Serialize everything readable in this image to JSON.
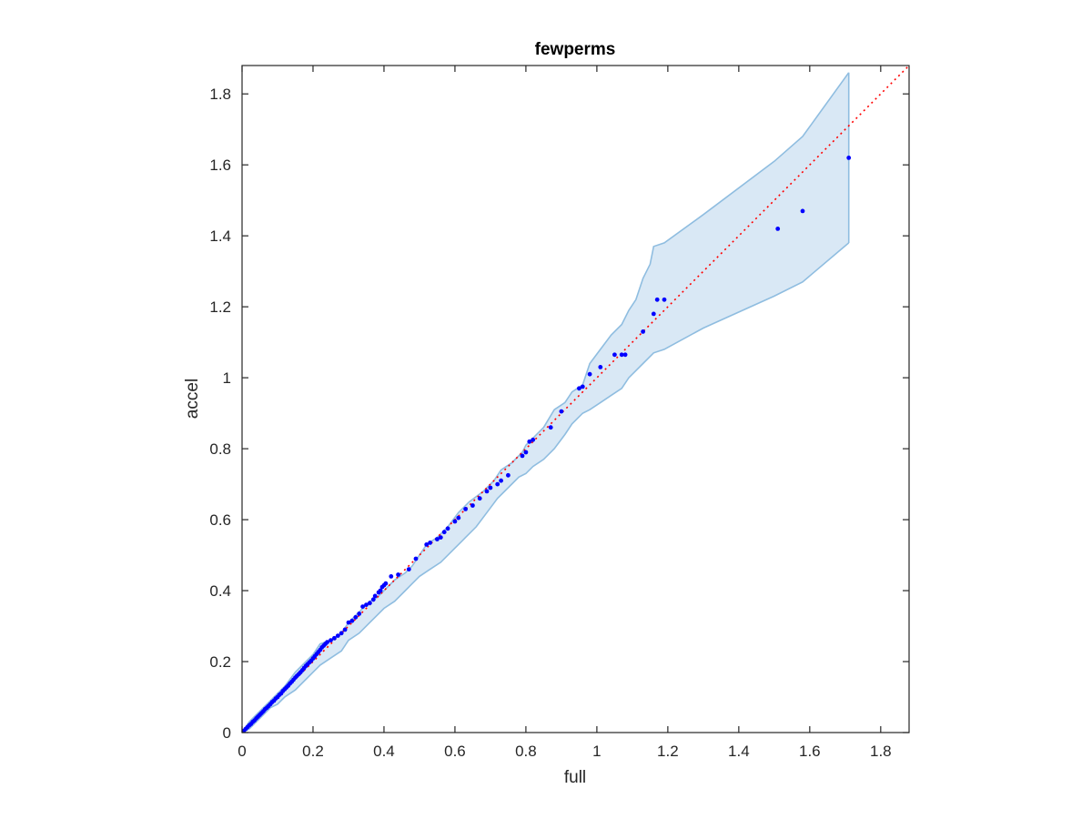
{
  "chart_data": {
    "type": "scatter",
    "title": "fewperms",
    "xlabel": "full",
    "ylabel": "accel",
    "xlim": [
      0,
      1.88
    ],
    "ylim": [
      0,
      1.88
    ],
    "xticks": [
      0,
      0.2,
      0.4,
      0.6,
      0.8,
      1,
      1.2,
      1.4,
      1.6,
      1.8
    ],
    "yticks": [
      0,
      0.2,
      0.4,
      0.6,
      0.8,
      1,
      1.2,
      1.4,
      1.6,
      1.8
    ],
    "xtick_labels": [
      "0",
      "0.2",
      "0.4",
      "0.6",
      "0.8",
      "1",
      "1.2",
      "1.4",
      "1.6",
      "1.8"
    ],
    "ytick_labels": [
      "0",
      "0.2",
      "0.4",
      "0.6",
      "0.8",
      "1",
      "1.2",
      "1.4",
      "1.6",
      "1.8"
    ],
    "grid": false,
    "colors": {
      "points": "#0000ff",
      "reference_line": "#ff0000",
      "band_fill": "#d9e8f5",
      "band_edge": "#8fbde0",
      "axes": "#262626"
    },
    "reference_line": {
      "style": "dotted",
      "from": [
        0,
        0
      ],
      "to": [
        1.88,
        1.88
      ]
    },
    "band": {
      "upper": [
        [
          0,
          0
        ],
        [
          0.02,
          0.03
        ],
        [
          0.05,
          0.06
        ],
        [
          0.08,
          0.09
        ],
        [
          0.1,
          0.11
        ],
        [
          0.12,
          0.13
        ],
        [
          0.15,
          0.17
        ],
        [
          0.18,
          0.2
        ],
        [
          0.2,
          0.22
        ],
        [
          0.22,
          0.25
        ],
        [
          0.25,
          0.26
        ],
        [
          0.28,
          0.28
        ],
        [
          0.3,
          0.31
        ],
        [
          0.33,
          0.34
        ],
        [
          0.36,
          0.37
        ],
        [
          0.38,
          0.38
        ],
        [
          0.4,
          0.4
        ],
        [
          0.43,
          0.43
        ],
        [
          0.46,
          0.45
        ],
        [
          0.48,
          0.47
        ],
        [
          0.5,
          0.5
        ],
        [
          0.52,
          0.53
        ],
        [
          0.55,
          0.55
        ],
        [
          0.58,
          0.58
        ],
        [
          0.61,
          0.62
        ],
        [
          0.64,
          0.65
        ],
        [
          0.68,
          0.68
        ],
        [
          0.71,
          0.71
        ],
        [
          0.73,
          0.74
        ],
        [
          0.76,
          0.76
        ],
        [
          0.79,
          0.79
        ],
        [
          0.8,
          0.81
        ],
        [
          0.82,
          0.83
        ],
        [
          0.85,
          0.86
        ],
        [
          0.88,
          0.91
        ],
        [
          0.91,
          0.93
        ],
        [
          0.93,
          0.96
        ],
        [
          0.96,
          0.98
        ],
        [
          0.98,
          1.04
        ],
        [
          1.01,
          1.08
        ],
        [
          1.04,
          1.12
        ],
        [
          1.07,
          1.15
        ],
        [
          1.09,
          1.19
        ],
        [
          1.11,
          1.22
        ],
        [
          1.13,
          1.28
        ],
        [
          1.15,
          1.32
        ],
        [
          1.16,
          1.37
        ],
        [
          1.19,
          1.38
        ],
        [
          1.3,
          1.46
        ],
        [
          1.5,
          1.61
        ],
        [
          1.58,
          1.68
        ],
        [
          1.71,
          1.86
        ]
      ],
      "lower": [
        [
          0,
          0
        ],
        [
          0.02,
          0.01
        ],
        [
          0.05,
          0.04
        ],
        [
          0.08,
          0.07
        ],
        [
          0.1,
          0.08
        ],
        [
          0.12,
          0.1
        ],
        [
          0.15,
          0.12
        ],
        [
          0.18,
          0.15
        ],
        [
          0.2,
          0.17
        ],
        [
          0.22,
          0.19
        ],
        [
          0.25,
          0.21
        ],
        [
          0.28,
          0.23
        ],
        [
          0.3,
          0.26
        ],
        [
          0.33,
          0.28
        ],
        [
          0.36,
          0.31
        ],
        [
          0.38,
          0.33
        ],
        [
          0.4,
          0.35
        ],
        [
          0.43,
          0.37
        ],
        [
          0.46,
          0.4
        ],
        [
          0.48,
          0.42
        ],
        [
          0.5,
          0.44
        ],
        [
          0.53,
          0.46
        ],
        [
          0.56,
          0.48
        ],
        [
          0.6,
          0.52
        ],
        [
          0.63,
          0.55
        ],
        [
          0.66,
          0.58
        ],
        [
          0.69,
          0.62
        ],
        [
          0.72,
          0.66
        ],
        [
          0.75,
          0.69
        ],
        [
          0.78,
          0.72
        ],
        [
          0.8,
          0.73
        ],
        [
          0.82,
          0.75
        ],
        [
          0.85,
          0.77
        ],
        [
          0.88,
          0.8
        ],
        [
          0.91,
          0.84
        ],
        [
          0.93,
          0.87
        ],
        [
          0.96,
          0.9
        ],
        [
          0.98,
          0.91
        ],
        [
          1.01,
          0.93
        ],
        [
          1.04,
          0.95
        ],
        [
          1.07,
          0.97
        ],
        [
          1.09,
          1.0
        ],
        [
          1.11,
          1.02
        ],
        [
          1.13,
          1.04
        ],
        [
          1.16,
          1.07
        ],
        [
          1.19,
          1.08
        ],
        [
          1.3,
          1.14
        ],
        [
          1.5,
          1.23
        ],
        [
          1.58,
          1.27
        ],
        [
          1.71,
          1.38
        ]
      ]
    },
    "points": [
      [
        0.005,
        0.005
      ],
      [
        0.01,
        0.01
      ],
      [
        0.015,
        0.015
      ],
      [
        0.02,
        0.02
      ],
      [
        0.025,
        0.024
      ],
      [
        0.03,
        0.03
      ],
      [
        0.035,
        0.034
      ],
      [
        0.04,
        0.04
      ],
      [
        0.045,
        0.045
      ],
      [
        0.05,
        0.05
      ],
      [
        0.055,
        0.055
      ],
      [
        0.06,
        0.06
      ],
      [
        0.065,
        0.066
      ],
      [
        0.07,
        0.07
      ],
      [
        0.075,
        0.075
      ],
      [
        0.08,
        0.08
      ],
      [
        0.085,
        0.086
      ],
      [
        0.09,
        0.09
      ],
      [
        0.095,
        0.096
      ],
      [
        0.1,
        0.1
      ],
      [
        0.105,
        0.106
      ],
      [
        0.11,
        0.11
      ],
      [
        0.115,
        0.117
      ],
      [
        0.12,
        0.122
      ],
      [
        0.125,
        0.127
      ],
      [
        0.13,
        0.132
      ],
      [
        0.135,
        0.138
      ],
      [
        0.14,
        0.143
      ],
      [
        0.145,
        0.149
      ],
      [
        0.15,
        0.155
      ],
      [
        0.155,
        0.16
      ],
      [
        0.16,
        0.165
      ],
      [
        0.165,
        0.17
      ],
      [
        0.17,
        0.176
      ],
      [
        0.175,
        0.182
      ],
      [
        0.18,
        0.188
      ],
      [
        0.185,
        0.193
      ],
      [
        0.19,
        0.198
      ],
      [
        0.195,
        0.203
      ],
      [
        0.2,
        0.209
      ],
      [
        0.205,
        0.215
      ],
      [
        0.21,
        0.221
      ],
      [
        0.215,
        0.227
      ],
      [
        0.22,
        0.233
      ],
      [
        0.225,
        0.24
      ],
      [
        0.23,
        0.245
      ],
      [
        0.235,
        0.25
      ],
      [
        0.24,
        0.255
      ],
      [
        0.25,
        0.26
      ],
      [
        0.26,
        0.266
      ],
      [
        0.27,
        0.273
      ],
      [
        0.28,
        0.28
      ],
      [
        0.29,
        0.29
      ],
      [
        0.3,
        0.31
      ],
      [
        0.31,
        0.315
      ],
      [
        0.32,
        0.325
      ],
      [
        0.33,
        0.335
      ],
      [
        0.34,
        0.355
      ],
      [
        0.35,
        0.36
      ],
      [
        0.36,
        0.365
      ],
      [
        0.37,
        0.375
      ],
      [
        0.375,
        0.385
      ],
      [
        0.385,
        0.395
      ],
      [
        0.39,
        0.4
      ],
      [
        0.395,
        0.41
      ],
      [
        0.4,
        0.415
      ],
      [
        0.405,
        0.42
      ],
      [
        0.42,
        0.44
      ],
      [
        0.44,
        0.445
      ],
      [
        0.47,
        0.46
      ],
      [
        0.49,
        0.49
      ],
      [
        0.52,
        0.53
      ],
      [
        0.53,
        0.535
      ],
      [
        0.55,
        0.545
      ],
      [
        0.56,
        0.55
      ],
      [
        0.57,
        0.565
      ],
      [
        0.58,
        0.575
      ],
      [
        0.6,
        0.595
      ],
      [
        0.61,
        0.605
      ],
      [
        0.63,
        0.63
      ],
      [
        0.65,
        0.64
      ],
      [
        0.67,
        0.66
      ],
      [
        0.69,
        0.68
      ],
      [
        0.7,
        0.69
      ],
      [
        0.72,
        0.7
      ],
      [
        0.73,
        0.71
      ],
      [
        0.75,
        0.725
      ],
      [
        0.79,
        0.78
      ],
      [
        0.8,
        0.79
      ],
      [
        0.81,
        0.82
      ],
      [
        0.82,
        0.825
      ],
      [
        0.87,
        0.86
      ],
      [
        0.9,
        0.905
      ],
      [
        0.95,
        0.97
      ],
      [
        0.96,
        0.975
      ],
      [
        0.98,
        1.01
      ],
      [
        1.01,
        1.03
      ],
      [
        1.05,
        1.065
      ],
      [
        1.07,
        1.065
      ],
      [
        1.08,
        1.065
      ],
      [
        1.13,
        1.13
      ],
      [
        1.16,
        1.18
      ],
      [
        1.17,
        1.22
      ],
      [
        1.19,
        1.22
      ],
      [
        1.51,
        1.42
      ],
      [
        1.58,
        1.47
      ],
      [
        1.71,
        1.62
      ]
    ]
  }
}
